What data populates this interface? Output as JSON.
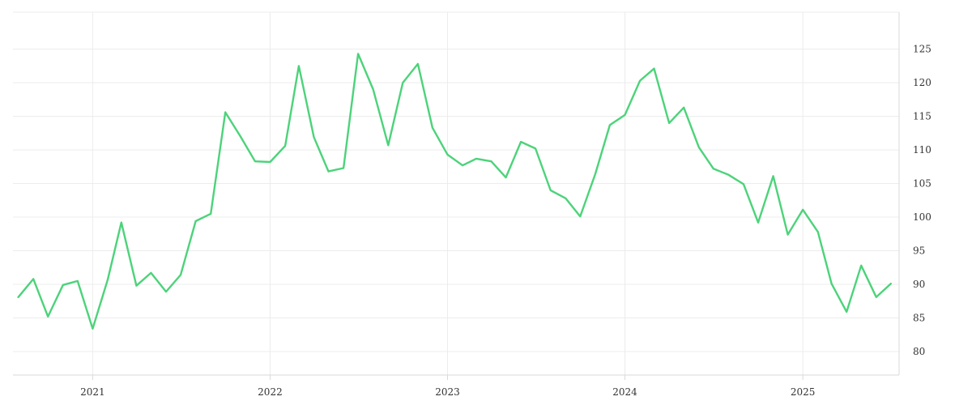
{
  "chart_data": {
    "type": "line",
    "title": "",
    "xlabel": "",
    "ylabel": "",
    "x_tick_labels": [
      "2021",
      "2022",
      "2023",
      "2024",
      "2025"
    ],
    "y_ticks": [
      80,
      85,
      90,
      95,
      100,
      105,
      110,
      115,
      120,
      125
    ],
    "ylim": [
      76.5,
      130.5
    ],
    "xlim": [
      "2020-07-21",
      "2025-07-18"
    ],
    "grid": true,
    "legend": "none",
    "colors": {
      "line": "#4cd37a"
    },
    "series": [
      {
        "x": [
          "2020-08-01",
          "2020-09-01",
          "2020-10-01",
          "2020-11-01",
          "2020-12-01",
          "2021-01-01",
          "2021-02-01",
          "2021-03-01",
          "2021-04-01",
          "2021-05-01",
          "2021-06-01",
          "2021-07-01",
          "2021-08-01",
          "2021-09-01",
          "2021-10-01",
          "2021-11-01",
          "2021-12-01",
          "2022-01-01",
          "2022-02-01",
          "2022-03-01",
          "2022-04-01",
          "2022-05-01",
          "2022-06-01",
          "2022-07-01",
          "2022-08-01",
          "2022-09-01",
          "2022-10-01",
          "2022-11-01",
          "2022-12-01",
          "2023-01-01",
          "2023-02-01",
          "2023-03-01",
          "2023-04-01",
          "2023-05-01",
          "2023-06-01",
          "2023-07-01",
          "2023-08-01",
          "2023-09-01",
          "2023-10-01",
          "2023-11-01",
          "2023-12-01",
          "2024-01-01",
          "2024-02-01",
          "2024-03-01",
          "2024-04-01",
          "2024-05-01",
          "2024-06-01",
          "2024-07-01",
          "2024-08-01",
          "2024-09-01",
          "2024-10-01",
          "2024-11-01",
          "2024-12-01",
          "2025-01-01",
          "2025-02-01",
          "2025-03-01",
          "2025-04-01",
          "2025-05-01",
          "2025-06-01",
          "2025-07-01"
        ],
        "values": [
          88.1,
          90.8,
          85.2,
          89.9,
          90.5,
          83.4,
          90.7,
          99.2,
          89.8,
          91.7,
          88.9,
          91.4,
          99.4,
          100.5,
          115.6,
          112.0,
          108.3,
          108.2,
          110.6,
          122.5,
          111.9,
          106.8,
          107.3,
          124.3,
          119.0,
          110.7,
          120.0,
          122.8,
          113.3,
          109.3,
          107.7,
          108.7,
          108.3,
          105.9,
          111.2,
          110.2,
          104.0,
          102.8,
          100.1,
          106.4,
          113.7,
          115.2,
          120.3,
          122.1,
          114.0,
          116.3,
          110.4,
          107.2,
          106.3,
          104.9,
          99.2,
          106.1,
          97.4,
          101.1,
          97.8,
          90.1,
          85.9,
          92.8,
          88.1,
          90.1
        ]
      }
    ]
  }
}
